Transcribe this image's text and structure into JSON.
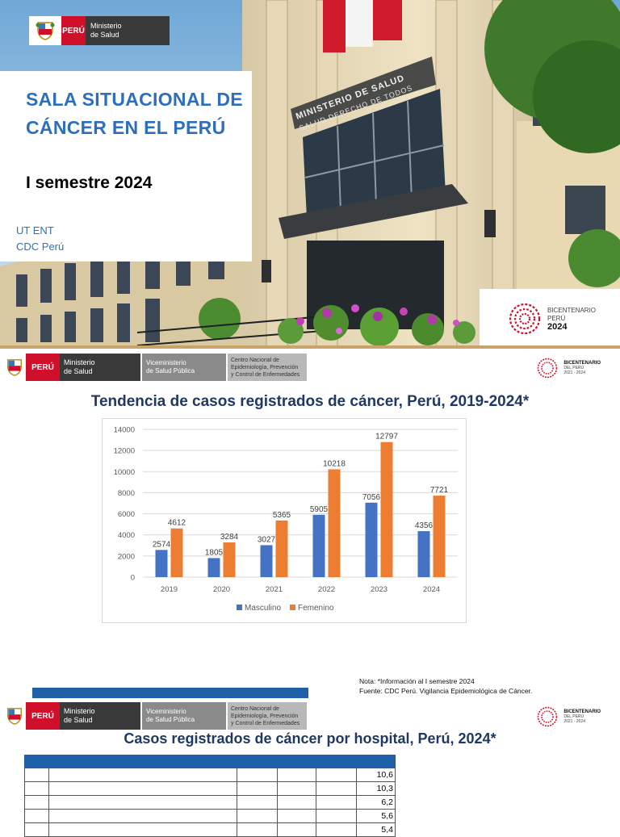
{
  "cover": {
    "title": "SALA SITUACIONAL DE CÁNCER EN EL PERÚ",
    "period": "I semestre 2024",
    "org_line1": "UT ENT",
    "org_line2": "CDC Perú",
    "logo_peru": "PERÚ",
    "logo_ministry_line1": "Ministerio",
    "logo_ministry_line2": "de Salud",
    "building_sign1": "MINISTERIO DE SALUD",
    "building_sign2": "SALUD DERECHO DE TODOS",
    "bicentenario_line1": "BICENTENARIO",
    "bicentenario_line2": "PERÚ",
    "bicentenario_year": "2024"
  },
  "header": {
    "peru": "PERÚ",
    "ministry_line1": "Ministerio",
    "ministry_line2": "de Salud",
    "vice_line1": "Viceministerio",
    "vice_line2": "de Salud Pública",
    "cdc_line1": "Centro Nacional de",
    "cdc_line2": "Epidemiología, Prevención",
    "cdc_line3": "y Control de Enfermedades",
    "bic_line1": "BICENTENARIO",
    "bic_line2": "DEL PERÚ",
    "bic_line3": "2021 - 2024"
  },
  "slide2": {
    "title": "Tendencia de casos registrados de cáncer, Perú, 2019-2024*",
    "note": "Nota: *Información al I semestre 2024",
    "source": "Fuente: CDC Perú. Vigilancia Epidemiológica de Cáncer."
  },
  "chart_data": {
    "type": "bar",
    "categories": [
      "2019",
      "2020",
      "2021",
      "2022",
      "2023",
      "2024"
    ],
    "series": [
      {
        "name": "Masculino",
        "color": "#4472c4",
        "values": [
          2574,
          1805,
          3027,
          5905,
          7056,
          4356
        ]
      },
      {
        "name": "Femenino",
        "color": "#ed7d31",
        "values": [
          4612,
          3284,
          5365,
          10218,
          12797,
          7721
        ]
      }
    ],
    "yticks": [
      "0",
      "2000",
      "4000",
      "6000",
      "8000",
      "10000",
      "12000",
      "14000"
    ],
    "ylim": [
      0,
      14000
    ],
    "legend_position": "bottom",
    "grid": true
  },
  "slide3": {
    "title": "Casos registrados de cáncer por hospital, Perú, 2024*",
    "rows": [
      "10,6",
      "10,3",
      "6,2",
      "5,6",
      "5,4"
    ]
  }
}
